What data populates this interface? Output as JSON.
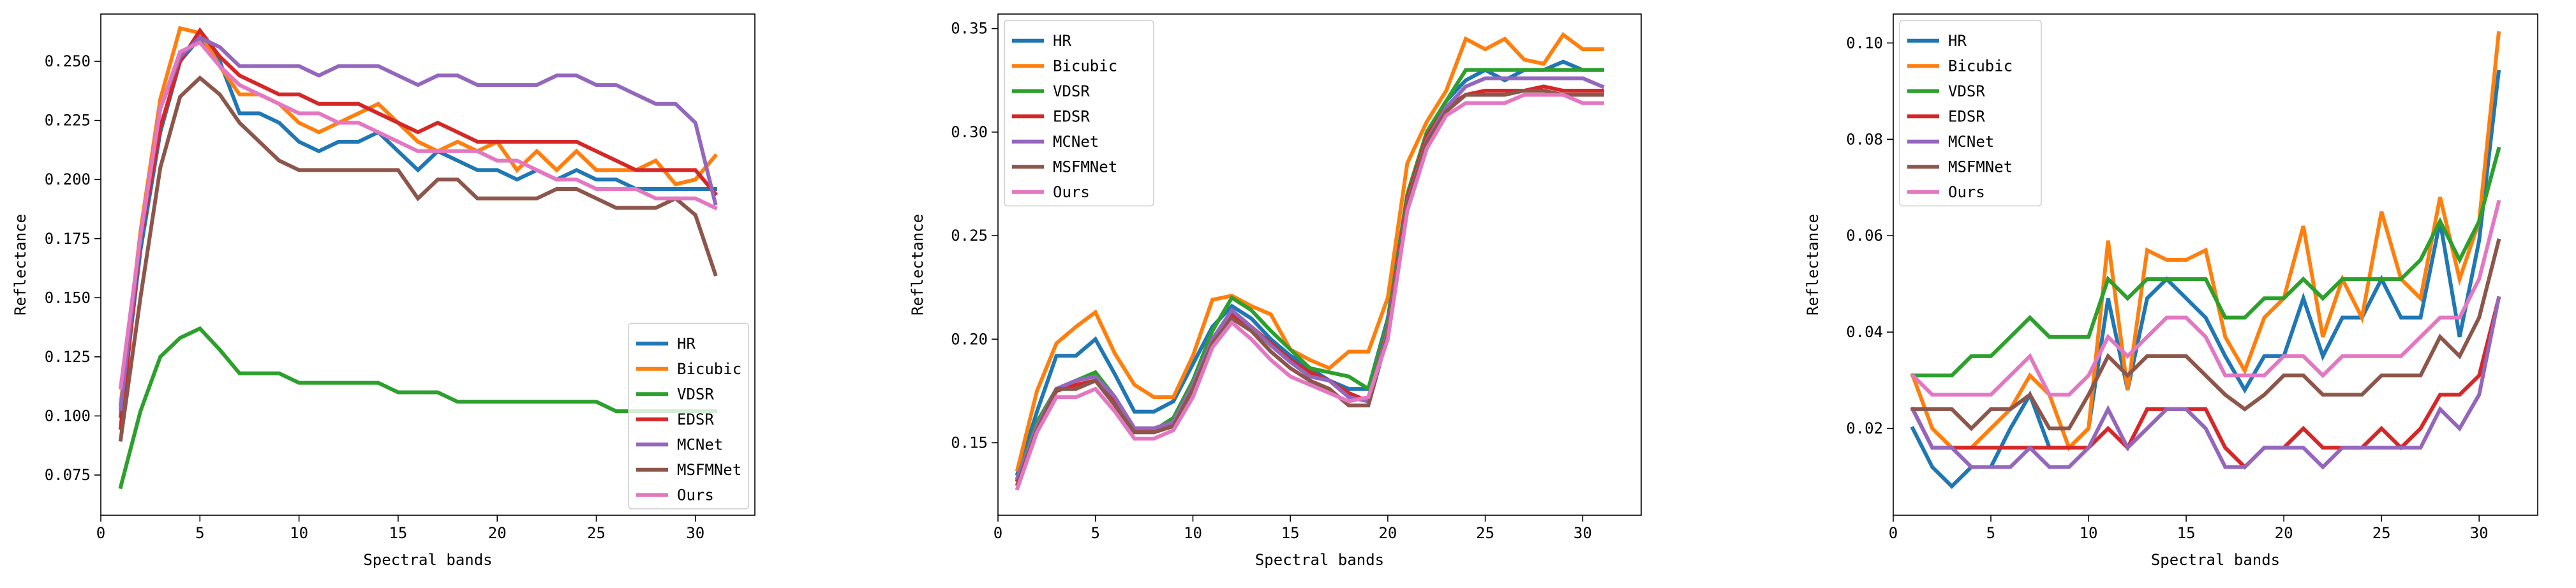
{
  "chart_data": [
    {
      "type": "line",
      "title": "",
      "xlabel": "Spectral bands",
      "ylabel": "Reflectance",
      "xlim": [
        0,
        33
      ],
      "ylim": [
        0.058,
        0.27
      ],
      "xticks": [
        0,
        5,
        10,
        15,
        20,
        25,
        30
      ],
      "yticks": [
        0.075,
        0.1,
        0.125,
        0.15,
        0.175,
        0.2,
        0.225,
        0.25
      ],
      "ytick_labels": [
        "0.075",
        "0.100",
        "0.125",
        "0.150",
        "0.175",
        "0.200",
        "0.225",
        "0.250"
      ],
      "legend_position": "lower-right",
      "x": [
        1,
        2,
        3,
        4,
        5,
        6,
        7,
        8,
        9,
        10,
        11,
        12,
        13,
        14,
        15,
        16,
        17,
        18,
        19,
        20,
        21,
        22,
        23,
        24,
        25,
        26,
        27,
        28,
        29,
        30,
        31
      ],
      "series": [
        {
          "name": "HR",
          "color": "#1f77b4",
          "values": [
            0.1,
            0.17,
            0.22,
            0.25,
            0.26,
            0.25,
            0.228,
            0.228,
            0.224,
            0.216,
            0.212,
            0.216,
            0.216,
            0.22,
            0.212,
            0.204,
            0.212,
            0.208,
            0.204,
            0.204,
            0.2,
            0.204,
            0.2,
            0.204,
            0.2,
            0.2,
            0.196,
            0.196,
            0.196,
            0.196,
            0.196
          ]
        },
        {
          "name": "Bicubic",
          "color": "#ff7f0e",
          "values": [
            0.105,
            0.178,
            0.234,
            0.264,
            0.262,
            0.248,
            0.236,
            0.236,
            0.232,
            0.224,
            0.22,
            0.224,
            0.228,
            0.232,
            0.224,
            0.216,
            0.212,
            0.216,
            0.212,
            0.216,
            0.204,
            0.212,
            0.204,
            0.212,
            0.204,
            0.204,
            0.204,
            0.208,
            0.198,
            0.2,
            0.21
          ]
        },
        {
          "name": "VDSR",
          "color": "#2ca02c",
          "values": [
            0.07,
            0.102,
            0.125,
            0.133,
            0.137,
            0.128,
            0.118,
            0.118,
            0.118,
            0.114,
            0.114,
            0.114,
            0.114,
            0.114,
            0.11,
            0.11,
            0.11,
            0.106,
            0.106,
            0.106,
            0.106,
            0.106,
            0.106,
            0.106,
            0.106,
            0.102,
            0.102,
            0.102,
            0.102,
            0.102,
            0.102
          ]
        },
        {
          "name": "EDSR",
          "color": "#d62728",
          "values": [
            0.095,
            0.175,
            0.222,
            0.25,
            0.263,
            0.252,
            0.244,
            0.24,
            0.236,
            0.236,
            0.232,
            0.232,
            0.232,
            0.228,
            0.224,
            0.22,
            0.224,
            0.22,
            0.216,
            0.216,
            0.216,
            0.216,
            0.216,
            0.216,
            0.212,
            0.208,
            0.204,
            0.204,
            0.204,
            0.204,
            0.194
          ]
        },
        {
          "name": "MCNet",
          "color": "#9467bd",
          "values": [
            0.103,
            0.176,
            0.23,
            0.252,
            0.26,
            0.256,
            0.248,
            0.248,
            0.248,
            0.248,
            0.244,
            0.248,
            0.248,
            0.248,
            0.244,
            0.24,
            0.244,
            0.244,
            0.24,
            0.24,
            0.24,
            0.24,
            0.244,
            0.244,
            0.24,
            0.24,
            0.236,
            0.232,
            0.232,
            0.224,
            0.19
          ]
        },
        {
          "name": "MSFMNet",
          "color": "#8c564b",
          "values": [
            0.09,
            0.15,
            0.205,
            0.235,
            0.243,
            0.236,
            0.224,
            0.216,
            0.208,
            0.204,
            0.204,
            0.204,
            0.204,
            0.204,
            0.204,
            0.192,
            0.2,
            0.2,
            0.192,
            0.192,
            0.192,
            0.192,
            0.196,
            0.196,
            0.192,
            0.188,
            0.188,
            0.188,
            0.192,
            0.185,
            0.16
          ]
        },
        {
          "name": "Ours",
          "color": "#e377c2",
          "values": [
            0.112,
            0.176,
            0.23,
            0.254,
            0.258,
            0.248,
            0.24,
            0.236,
            0.232,
            0.228,
            0.228,
            0.224,
            0.224,
            0.22,
            0.216,
            0.212,
            0.212,
            0.212,
            0.212,
            0.208,
            0.208,
            0.204,
            0.2,
            0.2,
            0.196,
            0.196,
            0.196,
            0.192,
            0.192,
            0.192,
            0.188
          ]
        }
      ]
    },
    {
      "type": "line",
      "title": "",
      "xlabel": "Spectral bands",
      "ylabel": "Reflectance",
      "xlim": [
        0,
        33
      ],
      "ylim": [
        0.115,
        0.357
      ],
      "xticks": [
        0,
        5,
        10,
        15,
        20,
        25,
        30
      ],
      "yticks": [
        0.15,
        0.2,
        0.25,
        0.3,
        0.35
      ],
      "ytick_labels": [
        "0.15",
        "0.20",
        "0.25",
        "0.30",
        "0.35"
      ],
      "legend_position": "upper-left",
      "x": [
        1,
        2,
        3,
        4,
        5,
        6,
        7,
        8,
        9,
        10,
        11,
        12,
        13,
        14,
        15,
        16,
        17,
        18,
        19,
        20,
        21,
        22,
        23,
        24,
        25,
        26,
        27,
        28,
        29,
        30,
        31
      ],
      "series": [
        {
          "name": "HR",
          "color": "#1f77b4",
          "values": [
            0.135,
            0.165,
            0.192,
            0.192,
            0.2,
            0.183,
            0.165,
            0.165,
            0.17,
            0.188,
            0.206,
            0.216,
            0.21,
            0.2,
            0.192,
            0.186,
            0.18,
            0.176,
            0.176,
            0.21,
            0.27,
            0.3,
            0.315,
            0.325,
            0.33,
            0.325,
            0.33,
            0.33,
            0.334,
            0.33,
            0.33
          ]
        },
        {
          "name": "Bicubic",
          "color": "#ff7f0e",
          "values": [
            0.137,
            0.175,
            0.198,
            0.206,
            0.213,
            0.193,
            0.178,
            0.172,
            0.172,
            0.192,
            0.219,
            0.221,
            0.216,
            0.212,
            0.195,
            0.19,
            0.186,
            0.194,
            0.194,
            0.22,
            0.285,
            0.305,
            0.32,
            0.345,
            0.34,
            0.345,
            0.335,
            0.333,
            0.347,
            0.34,
            0.34
          ]
        },
        {
          "name": "VDSR",
          "color": "#2ca02c",
          "values": [
            0.133,
            0.16,
            0.176,
            0.18,
            0.184,
            0.172,
            0.157,
            0.156,
            0.162,
            0.18,
            0.204,
            0.22,
            0.214,
            0.204,
            0.195,
            0.186,
            0.184,
            0.182,
            0.176,
            0.208,
            0.27,
            0.3,
            0.315,
            0.33,
            0.33,
            0.33,
            0.33,
            0.33,
            0.33,
            0.33,
            0.33
          ]
        },
        {
          "name": "EDSR",
          "color": "#d62728",
          "values": [
            0.132,
            0.158,
            0.175,
            0.178,
            0.18,
            0.17,
            0.156,
            0.156,
            0.16,
            0.178,
            0.2,
            0.212,
            0.206,
            0.198,
            0.19,
            0.184,
            0.18,
            0.174,
            0.17,
            0.205,
            0.268,
            0.298,
            0.312,
            0.318,
            0.32,
            0.32,
            0.32,
            0.322,
            0.32,
            0.32,
            0.32
          ]
        },
        {
          "name": "MCNet",
          "color": "#9467bd",
          "values": [
            0.133,
            0.158,
            0.176,
            0.18,
            0.182,
            0.172,
            0.157,
            0.157,
            0.16,
            0.178,
            0.2,
            0.214,
            0.206,
            0.197,
            0.189,
            0.182,
            0.18,
            0.172,
            0.17,
            0.204,
            0.266,
            0.296,
            0.312,
            0.322,
            0.326,
            0.326,
            0.326,
            0.326,
            0.326,
            0.326,
            0.322
          ]
        },
        {
          "name": "MSFMNet",
          "color": "#8c564b",
          "values": [
            0.13,
            0.156,
            0.176,
            0.176,
            0.18,
            0.168,
            0.155,
            0.155,
            0.158,
            0.176,
            0.198,
            0.21,
            0.204,
            0.194,
            0.186,
            0.18,
            0.176,
            0.168,
            0.168,
            0.202,
            0.265,
            0.295,
            0.31,
            0.318,
            0.318,
            0.318,
            0.32,
            0.32,
            0.318,
            0.318,
            0.318
          ]
        },
        {
          "name": "Ours",
          "color": "#e377c2",
          "values": [
            0.128,
            0.155,
            0.172,
            0.172,
            0.176,
            0.165,
            0.152,
            0.152,
            0.156,
            0.172,
            0.196,
            0.208,
            0.2,
            0.19,
            0.182,
            0.178,
            0.174,
            0.17,
            0.172,
            0.2,
            0.262,
            0.292,
            0.308,
            0.314,
            0.314,
            0.314,
            0.318,
            0.318,
            0.318,
            0.314,
            0.314
          ]
        }
      ]
    },
    {
      "type": "line",
      "title": "",
      "xlabel": "Spectral bands",
      "ylabel": "Reflectance",
      "xlim": [
        0,
        33
      ],
      "ylim": [
        0.002,
        0.106
      ],
      "xticks": [
        0,
        5,
        10,
        15,
        20,
        25,
        30
      ],
      "yticks": [
        0.02,
        0.04,
        0.06,
        0.08,
        0.1
      ],
      "ytick_labels": [
        "0.02",
        "0.04",
        "0.06",
        "0.08",
        "0.10"
      ],
      "legend_position": "upper-left",
      "x": [
        1,
        2,
        3,
        4,
        5,
        6,
        7,
        8,
        9,
        10,
        11,
        12,
        13,
        14,
        15,
        16,
        17,
        18,
        19,
        20,
        21,
        22,
        23,
        24,
        25,
        26,
        27,
        28,
        29,
        30,
        31
      ],
      "series": [
        {
          "name": "HR",
          "color": "#1f77b4",
          "values": [
            0.02,
            0.012,
            0.008,
            0.012,
            0.012,
            0.02,
            0.027,
            0.016,
            0.016,
            0.02,
            0.047,
            0.028,
            0.047,
            0.051,
            0.047,
            0.043,
            0.035,
            0.028,
            0.035,
            0.035,
            0.047,
            0.035,
            0.043,
            0.043,
            0.051,
            0.043,
            0.043,
            0.063,
            0.039,
            0.059,
            0.094
          ]
        },
        {
          "name": "Bicubic",
          "color": "#ff7f0e",
          "values": [
            0.031,
            0.02,
            0.016,
            0.016,
            0.02,
            0.024,
            0.031,
            0.027,
            0.016,
            0.02,
            0.059,
            0.028,
            0.057,
            0.055,
            0.055,
            0.057,
            0.039,
            0.032,
            0.043,
            0.047,
            0.062,
            0.039,
            0.051,
            0.043,
            0.065,
            0.051,
            0.047,
            0.068,
            0.051,
            0.063,
            0.102
          ]
        },
        {
          "name": "VDSR",
          "color": "#2ca02c",
          "values": [
            0.031,
            0.031,
            0.031,
            0.035,
            0.035,
            0.039,
            0.043,
            0.039,
            0.039,
            0.039,
            0.051,
            0.047,
            0.051,
            0.051,
            0.051,
            0.051,
            0.043,
            0.043,
            0.047,
            0.047,
            0.051,
            0.047,
            0.051,
            0.051,
            0.051,
            0.051,
            0.055,
            0.063,
            0.055,
            0.063,
            0.078
          ]
        },
        {
          "name": "EDSR",
          "color": "#d62728",
          "values": [
            0.024,
            0.016,
            0.016,
            0.016,
            0.016,
            0.016,
            0.016,
            0.016,
            0.016,
            0.016,
            0.02,
            0.016,
            0.024,
            0.024,
            0.024,
            0.024,
            0.016,
            0.012,
            0.016,
            0.016,
            0.02,
            0.016,
            0.016,
            0.016,
            0.02,
            0.016,
            0.02,
            0.027,
            0.027,
            0.031,
            0.047
          ]
        },
        {
          "name": "MCNet",
          "color": "#9467bd",
          "values": [
            0.024,
            0.016,
            0.016,
            0.012,
            0.012,
            0.012,
            0.016,
            0.012,
            0.012,
            0.016,
            0.024,
            0.016,
            0.02,
            0.024,
            0.024,
            0.02,
            0.012,
            0.012,
            0.016,
            0.016,
            0.016,
            0.012,
            0.016,
            0.016,
            0.016,
            0.016,
            0.016,
            0.024,
            0.02,
            0.027,
            0.047
          ]
        },
        {
          "name": "MSFMNet",
          "color": "#8c564b",
          "values": [
            0.024,
            0.024,
            0.024,
            0.02,
            0.024,
            0.024,
            0.027,
            0.02,
            0.02,
            0.027,
            0.035,
            0.031,
            0.035,
            0.035,
            0.035,
            0.031,
            0.027,
            0.024,
            0.027,
            0.031,
            0.031,
            0.027,
            0.027,
            0.027,
            0.031,
            0.031,
            0.031,
            0.039,
            0.035,
            0.043,
            0.059
          ]
        },
        {
          "name": "Ours",
          "color": "#e377c2",
          "values": [
            0.031,
            0.027,
            0.027,
            0.027,
            0.027,
            0.031,
            0.035,
            0.027,
            0.027,
            0.031,
            0.039,
            0.035,
            0.039,
            0.043,
            0.043,
            0.039,
            0.031,
            0.031,
            0.031,
            0.035,
            0.035,
            0.031,
            0.035,
            0.035,
            0.035,
            0.035,
            0.039,
            0.043,
            0.043,
            0.051,
            0.067
          ]
        }
      ]
    }
  ]
}
